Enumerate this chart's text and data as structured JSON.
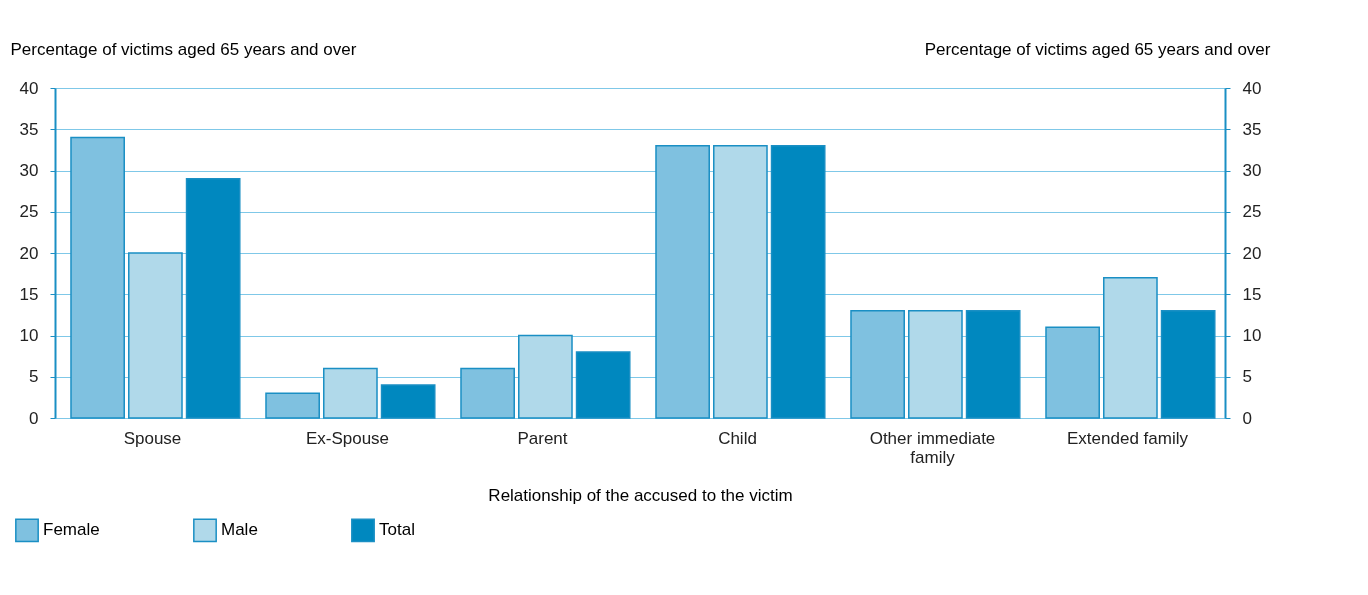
{
  "chart_data": {
    "type": "bar",
    "categories": [
      "Spouse",
      "Ex-Spouse",
      "Parent",
      "Child",
      "Other immediate family",
      "Extended family"
    ],
    "series": [
      {
        "name": "Female",
        "color": "#7fc1e0",
        "values": [
          34,
          3,
          6,
          33,
          13,
          11
        ]
      },
      {
        "name": "Male",
        "color": "#b0d9ea",
        "values": [
          20,
          6,
          10,
          33,
          13,
          17
        ]
      },
      {
        "name": "Total",
        "color": "#0088bf",
        "values": [
          29,
          4,
          8,
          33,
          13,
          13
        ]
      }
    ],
    "xlabel": "Relationship of the accused to the victim",
    "ylabel": "Percentage of victims aged 65 years and over",
    "y2label": "Percentage of victims aged 65 years and over",
    "ylim": [
      0,
      40
    ],
    "yticks": [
      0,
      5,
      10,
      15,
      20,
      25,
      30,
      35,
      40
    ],
    "y2lim": [
      0,
      40
    ],
    "y2ticks": [
      0,
      5,
      10,
      15,
      20,
      25,
      30,
      35,
      40
    ],
    "grid": "y",
    "legend": "bottom left"
  }
}
